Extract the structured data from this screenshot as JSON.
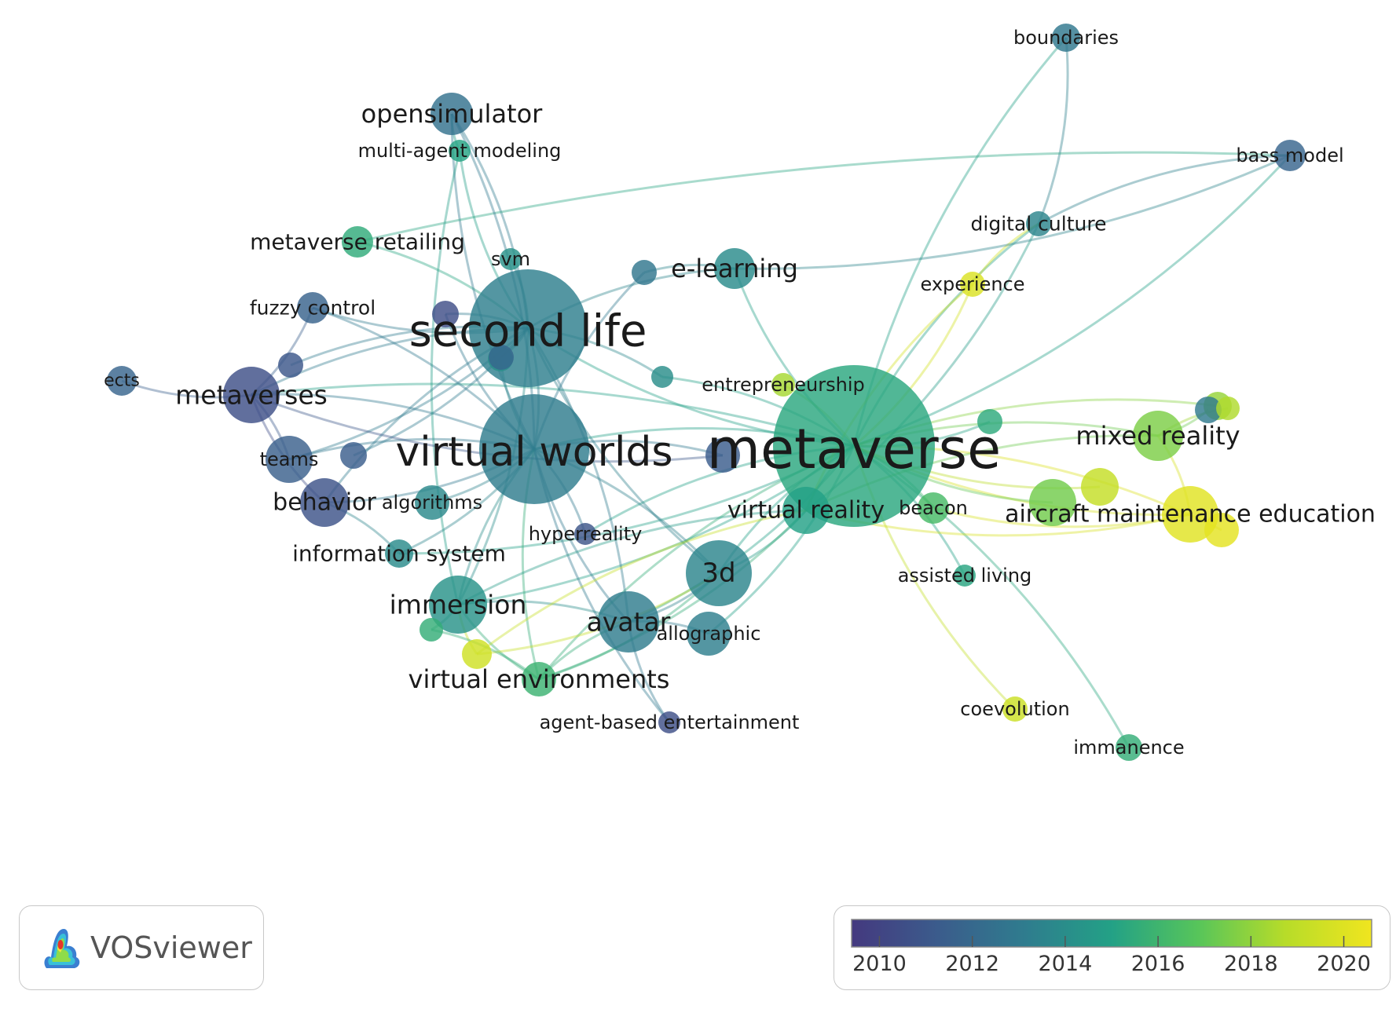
{
  "app": {
    "name": "VOSviewer"
  },
  "color_scale": {
    "ticks": [
      "2010",
      "2012",
      "2014",
      "2016",
      "2018",
      "2020"
    ],
    "min": 2009.4,
    "max": 2020.6,
    "colors": [
      "#44397f",
      "#3b5c8c",
      "#2f7c8e",
      "#23a186",
      "#57c55a",
      "#b7dc29",
      "#f0e51f"
    ]
  },
  "nodes": [
    {
      "id": "boundaries",
      "label": "boundaries",
      "year": 2012.9,
      "weight": 1,
      "show": true
    },
    {
      "id": "bass_model",
      "label": "bass model",
      "year": 2011.8,
      "weight": 1,
      "show": true
    },
    {
      "id": "opensimulator",
      "label": "opensimulator",
      "year": 2012.5,
      "weight": 2,
      "show": true
    },
    {
      "id": "multi_agent_modeling",
      "label": "multi-agent modeling",
      "year": 2015.1,
      "weight": 1,
      "show": true
    },
    {
      "id": "digital_culture",
      "label": "digital culture",
      "year": 2013.6,
      "weight": 1,
      "show": true
    },
    {
      "id": "metaverse_retailing",
      "label": "metaverse retailing",
      "year": 2015.5,
      "weight": 1,
      "show": true
    },
    {
      "id": "svm",
      "label": "svm",
      "year": 2014.2,
      "weight": 1,
      "show": true
    },
    {
      "id": "e_learning",
      "label": "e-learning",
      "year": 2013.9,
      "weight": 2,
      "show": true
    },
    {
      "id": "experience",
      "label": "experience",
      "year": 2019.9,
      "weight": 1,
      "show": true
    },
    {
      "id": "fuzzy_control",
      "label": "fuzzy control",
      "year": 2011.7,
      "weight": 1,
      "show": true
    },
    {
      "id": "second_life",
      "label": "second life",
      "year": 2013.3,
      "weight": 5,
      "show": true
    },
    {
      "id": "ects",
      "label": "ects",
      "year": 2011.8,
      "weight": 1,
      "show": true
    },
    {
      "id": "metaverses",
      "label": "metaverses",
      "year": 2010.6,
      "weight": 3,
      "show": true
    },
    {
      "id": "entrepreneurship",
      "label": "entrepreneurship",
      "year": 2018.4,
      "weight": 1,
      "show": true
    },
    {
      "id": "metaverse",
      "label": "metaverse",
      "year": 2015.3,
      "weight": 6,
      "show": true
    },
    {
      "id": "virtual_worlds",
      "label": "virtual worlds",
      "year": 2013.2,
      "weight": 5,
      "show": true
    },
    {
      "id": "mixed_reality",
      "label": "mixed reality",
      "year": 2017.6,
      "weight": 2,
      "show": true
    },
    {
      "id": "teams",
      "label": "teams",
      "year": 2011.5,
      "weight": 1,
      "show": true
    },
    {
      "id": "behavior",
      "label": "behavior",
      "year": 2010.8,
      "weight": 2,
      "show": true
    },
    {
      "id": "algorithms",
      "label": "algorithms",
      "year": 2013.8,
      "weight": 1,
      "show": true
    },
    {
      "id": "virtual_reality",
      "label": "virtual reality",
      "year": 2015.0,
      "weight": 3,
      "show": true
    },
    {
      "id": "beacon",
      "label": "beacon",
      "year": 2016.3,
      "weight": 1,
      "show": true
    },
    {
      "id": "aircraft_maintenance_education",
      "label": "aircraft maintenance education",
      "year": 2020.1,
      "weight": 2,
      "show": true
    },
    {
      "id": "hyperreality",
      "label": "hyperreality",
      "year": 2010.9,
      "weight": 1,
      "show": true
    },
    {
      "id": "information_system",
      "label": "information system",
      "year": 2013.9,
      "weight": 1,
      "show": true
    },
    {
      "id": "assisted_living",
      "label": "assisted living",
      "year": 2015.2,
      "weight": 1,
      "show": true
    },
    {
      "id": "3d",
      "label": "3d",
      "year": 2013.6,
      "weight": 3,
      "show": true
    },
    {
      "id": "immersion",
      "label": "immersion",
      "year": 2014.3,
      "weight": 3,
      "show": true
    },
    {
      "id": "avatar",
      "label": "avatar",
      "year": 2013.2,
      "weight": 3,
      "show": true
    },
    {
      "id": "allographic",
      "label": "allographic",
      "year": 2013.3,
      "weight": 1,
      "show": true
    },
    {
      "id": "virtual_environments",
      "label": "virtual environments",
      "year": 2015.9,
      "weight": 2,
      "show": true
    },
    {
      "id": "coevolution",
      "label": "coevolution",
      "year": 2019.4,
      "weight": 1,
      "show": true
    },
    {
      "id": "agent_based_entertainment",
      "label": "agent-based entertainment",
      "year": 2010.6,
      "weight": 1,
      "show": true
    },
    {
      "id": "immanence",
      "label": "immanence",
      "year": 2015.6,
      "weight": 1,
      "show": true
    },
    {
      "id": "u1",
      "label": "",
      "year": 2011.0,
      "weight": 1,
      "show": false
    },
    {
      "id": "u2",
      "label": "",
      "year": 2011.4,
      "weight": 1,
      "show": false
    },
    {
      "id": "u3",
      "label": "",
      "year": 2014.0,
      "weight": 1,
      "show": false
    },
    {
      "id": "u4",
      "label": "",
      "year": 2015.4,
      "weight": 1,
      "show": false
    },
    {
      "id": "u5",
      "label": "",
      "year": 2018.1,
      "weight": 1,
      "show": false
    },
    {
      "id": "u6",
      "label": "",
      "year": 2012.8,
      "weight": 1,
      "show": false
    },
    {
      "id": "u7",
      "label": "",
      "year": 2011.3,
      "weight": 1,
      "show": false
    },
    {
      "id": "u8",
      "label": "",
      "year": 2017.4,
      "weight": 1,
      "show": false
    },
    {
      "id": "u9",
      "label": "",
      "year": 2020.2,
      "weight": 1,
      "show": false
    },
    {
      "id": "u10",
      "label": "",
      "year": 2019.2,
      "weight": 1,
      "show": false
    },
    {
      "id": "u11",
      "label": "",
      "year": 2014.1,
      "weight": 1,
      "show": false
    },
    {
      "id": "u12",
      "label": "",
      "year": 2019.5,
      "weight": 1,
      "show": false
    },
    {
      "id": "u13",
      "label": "",
      "year": 2010.5,
      "weight": 1,
      "show": false
    },
    {
      "id": "u14",
      "label": "",
      "year": 2011.9,
      "weight": 1,
      "show": false
    },
    {
      "id": "u15",
      "label": "",
      "year": 2015.6,
      "weight": 1,
      "show": false
    },
    {
      "id": "u16",
      "label": "",
      "year": 2013.0,
      "weight": 1,
      "show": false
    },
    {
      "id": "u17",
      "label": "",
      "year": 2018.6,
      "weight": 1,
      "show": false
    }
  ],
  "links": [
    [
      "metaverse",
      "second_life"
    ],
    [
      "metaverse",
      "virtual_worlds"
    ],
    [
      "metaverse",
      "boundaries"
    ],
    [
      "metaverse",
      "bass_model"
    ],
    [
      "metaverse",
      "digital_culture"
    ],
    [
      "metaverse",
      "experience"
    ],
    [
      "metaverse",
      "mixed_reality"
    ],
    [
      "metaverse",
      "aircraft_maintenance_education"
    ],
    [
      "metaverse",
      "assisted_living"
    ],
    [
      "metaverse",
      "coevolution"
    ],
    [
      "metaverse",
      "immanence"
    ],
    [
      "metaverse",
      "virtual_reality"
    ],
    [
      "metaverse",
      "beacon"
    ],
    [
      "metaverse",
      "3d"
    ],
    [
      "metaverse",
      "avatar"
    ],
    [
      "metaverse",
      "virtual_environments"
    ],
    [
      "metaverse",
      "immersion"
    ],
    [
      "metaverse",
      "entrepreneurship"
    ],
    [
      "metaverse",
      "e_learning"
    ],
    [
      "metaverse",
      "hyperreality"
    ],
    [
      "metaverse",
      "information_system"
    ],
    [
      "metaverse",
      "metaverses"
    ],
    [
      "metaverse",
      "allographic"
    ],
    [
      "metaverse",
      "u8"
    ],
    [
      "metaverse",
      "u9"
    ],
    [
      "metaverse",
      "u10"
    ],
    [
      "metaverse",
      "u5"
    ],
    [
      "metaverse",
      "u4"
    ],
    [
      "second_life",
      "virtual_worlds"
    ],
    [
      "second_life",
      "opensimulator"
    ],
    [
      "second_life",
      "multi_agent_modeling"
    ],
    [
      "second_life",
      "metaverses"
    ],
    [
      "second_life",
      "fuzzy_control"
    ],
    [
      "second_life",
      "metaverse_retailing"
    ],
    [
      "second_life",
      "e_learning"
    ],
    [
      "second_life",
      "svm"
    ],
    [
      "second_life",
      "avatar"
    ],
    [
      "second_life",
      "3d"
    ],
    [
      "second_life",
      "immersion"
    ],
    [
      "second_life",
      "behavior"
    ],
    [
      "second_life",
      "teams"
    ],
    [
      "second_life",
      "u1"
    ],
    [
      "second_life",
      "u2"
    ],
    [
      "virtual_worlds",
      "metaverses"
    ],
    [
      "virtual_worlds",
      "behavior"
    ],
    [
      "virtual_worlds",
      "teams"
    ],
    [
      "virtual_worlds",
      "algorithms"
    ],
    [
      "virtual_worlds",
      "avatar"
    ],
    [
      "virtual_worlds",
      "3d"
    ],
    [
      "virtual_worlds",
      "immersion"
    ],
    [
      "virtual_worlds",
      "information_system"
    ],
    [
      "virtual_worlds",
      "virtual_environments"
    ],
    [
      "virtual_worlds",
      "hyperreality"
    ],
    [
      "virtual_worlds",
      "fuzzy_control"
    ],
    [
      "virtual_worlds",
      "opensimulator"
    ],
    [
      "virtual_worlds",
      "agent_based_entertainment"
    ],
    [
      "virtual_worlds",
      "u11"
    ],
    [
      "digital_culture",
      "boundaries"
    ],
    [
      "digital_culture",
      "bass_model"
    ],
    [
      "digital_culture",
      "experience"
    ],
    [
      "digital_culture",
      "virtual_reality"
    ],
    [
      "bass_model",
      "metaverse_retailing"
    ],
    [
      "bass_model",
      "e_learning"
    ],
    [
      "opensimulator",
      "multi_agent_modeling"
    ],
    [
      "opensimulator",
      "virtual_worlds"
    ],
    [
      "multi_agent_modeling",
      "immersion"
    ],
    [
      "metaverses",
      "ects"
    ],
    [
      "metaverses",
      "behavior"
    ],
    [
      "metaverses",
      "teams"
    ],
    [
      "metaverses",
      "fuzzy_control"
    ],
    [
      "behavior",
      "information_system"
    ],
    [
      "immersion",
      "virtual_environments"
    ],
    [
      "immersion",
      "avatar"
    ],
    [
      "avatar",
      "virtual_environments"
    ],
    [
      "3d",
      "virtual_environments"
    ],
    [
      "3d",
      "virtual_reality"
    ],
    [
      "3d",
      "avatar"
    ],
    [
      "allographic",
      "avatar"
    ],
    [
      "agent_based_entertainment",
      "avatar"
    ],
    [
      "virtual_reality",
      "aircraft_maintenance_education"
    ],
    [
      "virtual_reality",
      "mixed_reality"
    ],
    [
      "virtual_reality",
      "immersion"
    ],
    [
      "virtual_reality",
      "virtual_environments"
    ],
    [
      "beacon",
      "aircraft_maintenance_education"
    ],
    [
      "mixed_reality",
      "aircraft_maintenance_education"
    ],
    [
      "mixed_reality",
      "u16"
    ],
    [
      "mixed_reality",
      "u17"
    ],
    [
      "experience",
      "virtual_reality"
    ],
    [
      "u12",
      "immersion"
    ],
    [
      "u12",
      "3d"
    ],
    [
      "u12",
      "virtual_reality"
    ],
    [
      "u15",
      "immersion"
    ],
    [
      "u15",
      "virtual_environments"
    ],
    [
      "u13",
      "virtual_worlds"
    ],
    [
      "u13",
      "second_life"
    ],
    [
      "u14",
      "second_life"
    ],
    [
      "u6",
      "e_learning"
    ],
    [
      "u6",
      "virtual_worlds"
    ],
    [
      "u3",
      "metaverse"
    ],
    [
      "u3",
      "second_life"
    ],
    [
      "u7",
      "metaverses"
    ],
    [
      "u7",
      "virtual_worlds"
    ]
  ]
}
